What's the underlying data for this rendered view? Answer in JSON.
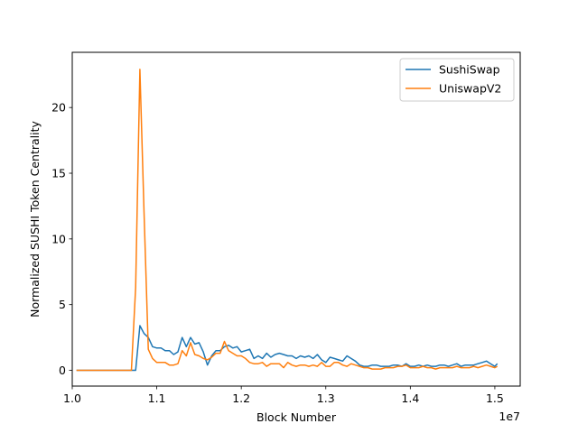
{
  "chart_data": {
    "type": "line",
    "title": "",
    "xlabel": "Block Number",
    "ylabel": "Normalized SUSHI Token Centrality",
    "x_offset_text": "1e7",
    "xlim": [
      1.0,
      1.53
    ],
    "ylim": [
      -1.2,
      24.2
    ],
    "xticks": [
      1.0,
      1.1,
      1.2,
      1.3,
      1.4,
      1.5
    ],
    "xtick_labels": [
      "1.0",
      "1.1",
      "1.2",
      "1.3",
      "1.4",
      "1.5"
    ],
    "yticks": [
      0,
      5,
      10,
      15,
      20
    ],
    "ytick_labels": [
      "0",
      "5",
      "10",
      "15",
      "20"
    ],
    "grid": false,
    "legend": {
      "position": "top-right",
      "entries": [
        "SushiSwap",
        "UniswapV2"
      ]
    },
    "series": [
      {
        "name": "SushiSwap",
        "color": "#1f77b4",
        "x": [
          1.005,
          1.01,
          1.02,
          1.03,
          1.04,
          1.05,
          1.06,
          1.065,
          1.07,
          1.075,
          1.08,
          1.085,
          1.09,
          1.095,
          1.1,
          1.105,
          1.11,
          1.115,
          1.12,
          1.125,
          1.13,
          1.135,
          1.14,
          1.145,
          1.15,
          1.155,
          1.16,
          1.165,
          1.17,
          1.175,
          1.18,
          1.185,
          1.19,
          1.195,
          1.2,
          1.205,
          1.21,
          1.215,
          1.22,
          1.225,
          1.23,
          1.235,
          1.24,
          1.245,
          1.25,
          1.255,
          1.26,
          1.265,
          1.27,
          1.275,
          1.28,
          1.285,
          1.29,
          1.295,
          1.3,
          1.305,
          1.31,
          1.315,
          1.32,
          1.325,
          1.33,
          1.335,
          1.34,
          1.345,
          1.35,
          1.355,
          1.36,
          1.365,
          1.37,
          1.375,
          1.38,
          1.385,
          1.39,
          1.395,
          1.4,
          1.405,
          1.41,
          1.415,
          1.42,
          1.425,
          1.43,
          1.435,
          1.44,
          1.445,
          1.45,
          1.455,
          1.46,
          1.465,
          1.47,
          1.475,
          1.48,
          1.485,
          1.49,
          1.495,
          1.5,
          1.503
        ],
        "y": [
          0,
          0,
          0,
          0,
          0,
          0,
          0,
          0,
          0,
          0,
          3.4,
          2.8,
          2.5,
          1.8,
          1.7,
          1.7,
          1.5,
          1.5,
          1.2,
          1.4,
          2.5,
          1.8,
          2.5,
          2.0,
          2.1,
          1.4,
          0.4,
          1.1,
          1.5,
          1.5,
          1.8,
          1.9,
          1.7,
          1.8,
          1.4,
          1.5,
          1.6,
          0.9,
          1.1,
          0.9,
          1.3,
          1.0,
          1.2,
          1.3,
          1.2,
          1.1,
          1.1,
          0.9,
          1.1,
          1.0,
          1.1,
          0.9,
          1.2,
          0.8,
          0.6,
          1.0,
          0.9,
          0.8,
          0.7,
          1.1,
          0.9,
          0.7,
          0.4,
          0.3,
          0.3,
          0.4,
          0.4,
          0.3,
          0.3,
          0.3,
          0.4,
          0.4,
          0.3,
          0.5,
          0.3,
          0.3,
          0.4,
          0.3,
          0.4,
          0.3,
          0.3,
          0.4,
          0.4,
          0.3,
          0.4,
          0.5,
          0.3,
          0.4,
          0.4,
          0.4,
          0.5,
          0.6,
          0.7,
          0.5,
          0.3,
          0.5
        ]
      },
      {
        "name": "UniswapV2",
        "color": "#ff7f0e",
        "x": [
          1.005,
          1.01,
          1.02,
          1.03,
          1.04,
          1.05,
          1.06,
          1.065,
          1.07,
          1.075,
          1.08,
          1.085,
          1.09,
          1.095,
          1.1,
          1.105,
          1.11,
          1.115,
          1.12,
          1.125,
          1.13,
          1.135,
          1.14,
          1.145,
          1.15,
          1.155,
          1.16,
          1.165,
          1.17,
          1.175,
          1.18,
          1.185,
          1.19,
          1.195,
          1.2,
          1.205,
          1.21,
          1.215,
          1.22,
          1.225,
          1.23,
          1.235,
          1.24,
          1.245,
          1.25,
          1.255,
          1.26,
          1.265,
          1.27,
          1.275,
          1.28,
          1.285,
          1.29,
          1.295,
          1.3,
          1.305,
          1.31,
          1.315,
          1.32,
          1.325,
          1.33,
          1.335,
          1.34,
          1.345,
          1.35,
          1.355,
          1.36,
          1.365,
          1.37,
          1.375,
          1.38,
          1.385,
          1.39,
          1.395,
          1.4,
          1.405,
          1.41,
          1.415,
          1.42,
          1.425,
          1.43,
          1.435,
          1.44,
          1.445,
          1.45,
          1.455,
          1.46,
          1.465,
          1.47,
          1.475,
          1.48,
          1.485,
          1.49,
          1.495,
          1.5,
          1.503
        ],
        "y": [
          0,
          0,
          0,
          0,
          0,
          0,
          0,
          0,
          0,
          6.3,
          22.9,
          12.0,
          1.6,
          0.9,
          0.6,
          0.6,
          0.6,
          0.4,
          0.4,
          0.5,
          1.5,
          1.1,
          2.1,
          1.2,
          1.1,
          0.9,
          0.8,
          1.0,
          1.3,
          1.3,
          2.2,
          1.5,
          1.3,
          1.1,
          1.1,
          0.9,
          0.6,
          0.5,
          0.5,
          0.6,
          0.3,
          0.5,
          0.5,
          0.5,
          0.2,
          0.6,
          0.4,
          0.3,
          0.4,
          0.4,
          0.3,
          0.4,
          0.3,
          0.6,
          0.3,
          0.3,
          0.6,
          0.6,
          0.4,
          0.3,
          0.5,
          0.4,
          0.3,
          0.2,
          0.2,
          0.1,
          0.1,
          0.1,
          0.2,
          0.2,
          0.2,
          0.3,
          0.3,
          0.4,
          0.2,
          0.2,
          0.2,
          0.3,
          0.2,
          0.2,
          0.1,
          0.2,
          0.2,
          0.2,
          0.2,
          0.3,
          0.2,
          0.2,
          0.2,
          0.3,
          0.2,
          0.3,
          0.4,
          0.3,
          0.2,
          0.3
        ]
      }
    ]
  }
}
